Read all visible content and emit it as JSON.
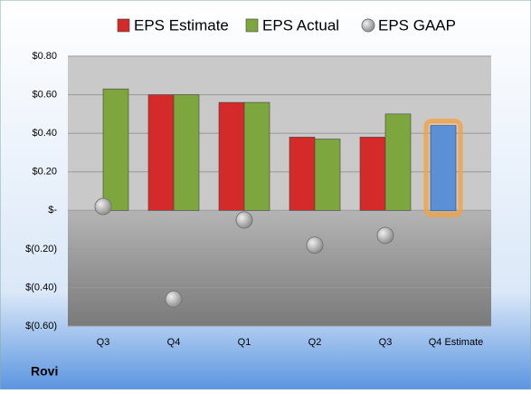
{
  "chart_data": {
    "type": "bar",
    "footer": "Rovi",
    "categories": [
      "Q3",
      "Q4",
      "Q1",
      "Q2",
      "Q3",
      "Q4 Estimate"
    ],
    "series": [
      {
        "name": "EPS Estimate",
        "color": "#d42a2a",
        "values": [
          null,
          0.6,
          0.56,
          0.38,
          0.38,
          0.44
        ],
        "point_colors": {
          "5": "#5b8fd6"
        }
      },
      {
        "name": "EPS Actual",
        "color": "#7ea63e",
        "values": [
          0.63,
          0.6,
          0.56,
          0.37,
          0.5,
          null
        ]
      },
      {
        "name": "EPS GAAP",
        "color": "#9a9a9a",
        "type": "scatter",
        "values": [
          0.02,
          -0.46,
          -0.05,
          -0.18,
          -0.13,
          null
        ]
      }
    ],
    "ylim": [
      -0.6,
      0.8
    ],
    "yticks": [
      {
        "value": -0.6,
        "label": "$(0.60)"
      },
      {
        "value": -0.4,
        "label": "$(0.40)"
      },
      {
        "value": -0.2,
        "label": "$(0.20)"
      },
      {
        "value": 0,
        "label": "$-"
      },
      {
        "value": 0.2,
        "label": "$0.20"
      },
      {
        "value": 0.4,
        "label": "$0.40"
      },
      {
        "value": 0.6,
        "label": "$0.60"
      },
      {
        "value": 0.8,
        "label": "$0.80"
      }
    ],
    "grid": true,
    "legend": "top"
  }
}
